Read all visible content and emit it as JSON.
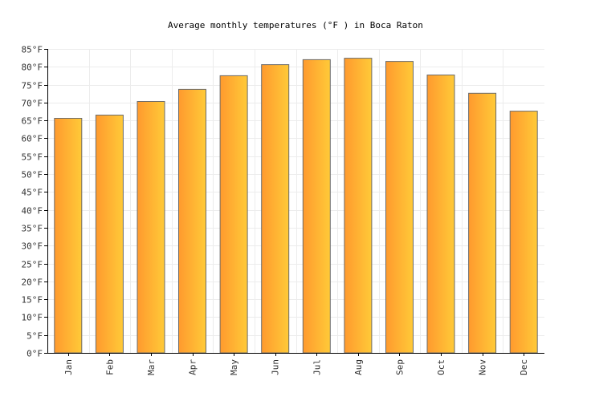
{
  "chart_data": {
    "type": "bar",
    "title": "Average monthly temperatures (°F ) in Boca Raton",
    "xlabel": "",
    "ylabel": "",
    "categories": [
      "Jan",
      "Feb",
      "Mar",
      "Apr",
      "May",
      "Jun",
      "Jul",
      "Aug",
      "Sep",
      "Oct",
      "Nov",
      "Dec"
    ],
    "values": [
      65.6,
      66.5,
      70.3,
      73.7,
      77.5,
      80.6,
      82.0,
      82.4,
      81.5,
      77.7,
      72.6,
      67.6
    ],
    "ylim": [
      0,
      85
    ],
    "ytick_step": 5,
    "ytick_suffix": "°F",
    "grid": true,
    "legend": "none",
    "colors": {
      "bar_left": "#ff9a2e",
      "bar_right": "#ffca38",
      "bar_stroke": "#6b6b6b",
      "grid": "#ececec",
      "axis": "#000000"
    }
  }
}
